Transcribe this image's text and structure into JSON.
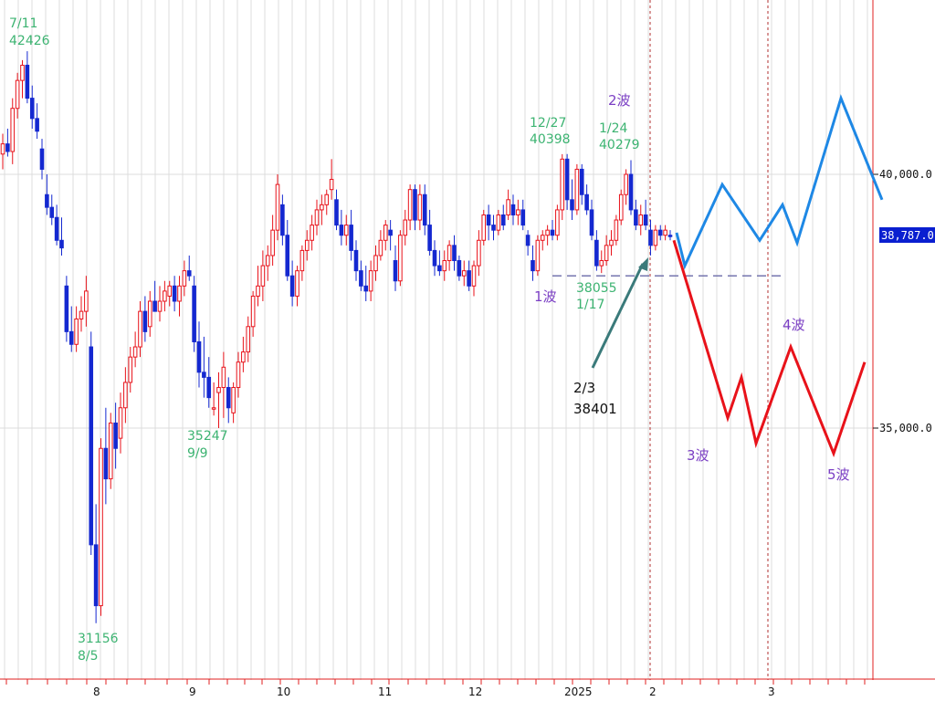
{
  "chart_data": {
    "type": "candlestick",
    "y_axis": {
      "ticks": [
        {
          "value": 35000,
          "label": "35,000.0"
        },
        {
          "value": 40000,
          "label": "40,000.0"
        }
      ],
      "range": [
        30600,
        43400
      ]
    },
    "x_axis": {
      "ticks": [
        "8",
        "9",
        "10",
        "11",
        "12",
        "2025",
        "2",
        "3"
      ]
    },
    "current_price": {
      "value": 38787,
      "label": "38,787.0"
    },
    "colors": {
      "up": "#e8121a",
      "down": "#1428d0",
      "forecast_up": "#1e88e5",
      "forecast_down": "#e8121a",
      "support": "#6a6aa8",
      "arrow": "#3a7a7a"
    },
    "candles": [
      [
        40400,
        40800,
        40100,
        40600
      ],
      [
        40600,
        40900,
        40350,
        40450
      ],
      [
        40450,
        41500,
        40200,
        41300
      ],
      [
        41300,
        42000,
        41100,
        41850
      ],
      [
        41850,
        42250,
        41500,
        42150
      ],
      [
        42150,
        42426,
        41400,
        41500
      ],
      [
        41500,
        41750,
        40900,
        41100
      ],
      [
        41100,
        41400,
        40700,
        40850
      ],
      [
        40500,
        40700,
        39900,
        40100
      ],
      [
        39600,
        40000,
        39200,
        39350
      ],
      [
        39350,
        39600,
        39000,
        39150
      ],
      [
        39150,
        39400,
        38600,
        38700
      ],
      [
        38700,
        39150,
        38400,
        38550
      ],
      [
        37800,
        38000,
        36700,
        36900
      ],
      [
        36900,
        37400,
        36500,
        36650
      ],
      [
        36650,
        37400,
        36500,
        37150
      ],
      [
        37150,
        37600,
        36900,
        37300
      ],
      [
        37300,
        38000,
        37000,
        37700
      ],
      [
        36600,
        36900,
        32500,
        32700
      ],
      [
        32700,
        33500,
        31156,
        31500
      ],
      [
        31500,
        34800,
        31300,
        34600
      ],
      [
        34600,
        35400,
        33500,
        34000
      ],
      [
        34000,
        35300,
        33800,
        35100
      ],
      [
        35100,
        35500,
        34200,
        34600
      ],
      [
        34800,
        35700,
        34500,
        35400
      ],
      [
        35400,
        36200,
        35100,
        35900
      ],
      [
        35900,
        36600,
        35700,
        36400
      ],
      [
        36400,
        36900,
        36200,
        36600
      ],
      [
        36600,
        37500,
        36400,
        37300
      ],
      [
        37300,
        37600,
        36700,
        36900
      ],
      [
        37000,
        37700,
        36800,
        37500
      ],
      [
        37500,
        37900,
        37300,
        37300
      ],
      [
        37300,
        37800,
        37100,
        37500
      ],
      [
        37500,
        37900,
        37300,
        37700
      ],
      [
        37600,
        37900,
        37400,
        37800
      ],
      [
        37800,
        38000,
        37300,
        37500
      ],
      [
        37500,
        38000,
        37200,
        37800
      ],
      [
        37800,
        38300,
        37600,
        38100
      ],
      [
        38100,
        38400,
        37900,
        38000
      ],
      [
        37800,
        38000,
        36500,
        36700
      ],
      [
        36700,
        37100,
        35800,
        36100
      ],
      [
        36100,
        36800,
        35600,
        36000
      ],
      [
        36000,
        36400,
        35400,
        35600
      ],
      [
        35400,
        35900,
        35247,
        35400
      ],
      [
        35700,
        36100,
        35000,
        35800
      ],
      [
        35800,
        36500,
        35200,
        36200
      ],
      [
        35800,
        36000,
        35100,
        35400
      ],
      [
        35300,
        35900,
        35100,
        35800
      ],
      [
        35800,
        36500,
        35600,
        36300
      ],
      [
        36300,
        36800,
        36100,
        36500
      ],
      [
        36500,
        37200,
        36300,
        37000
      ],
      [
        37000,
        37700,
        36800,
        37600
      ],
      [
        37600,
        38200,
        37400,
        37800
      ],
      [
        37800,
        38500,
        37500,
        38200
      ],
      [
        38200,
        38600,
        37900,
        38400
      ],
      [
        38400,
        39200,
        38200,
        38900
      ],
      [
        38900,
        40000,
        38700,
        39800
      ],
      [
        39400,
        39600,
        38600,
        38800
      ],
      [
        38800,
        39100,
        37900,
        38000
      ],
      [
        38000,
        38300,
        37400,
        37600
      ],
      [
        37600,
        38200,
        37400,
        38100
      ],
      [
        38100,
        38600,
        37900,
        38500
      ],
      [
        38500,
        38900,
        38300,
        38700
      ],
      [
        38700,
        39200,
        38500,
        39000
      ],
      [
        39000,
        39500,
        38800,
        39300
      ],
      [
        39300,
        39600,
        39000,
        39400
      ],
      [
        39400,
        39700,
        39200,
        39600
      ],
      [
        39700,
        40300,
        39500,
        39900
      ],
      [
        39500,
        39700,
        38900,
        39000
      ],
      [
        39000,
        39300,
        38600,
        38800
      ],
      [
        38800,
        39200,
        38600,
        39000
      ],
      [
        39000,
        39300,
        38300,
        38500
      ],
      [
        38500,
        38700,
        37900,
        38100
      ],
      [
        38100,
        38300,
        37700,
        37800
      ],
      [
        37800,
        38200,
        37500,
        37700
      ],
      [
        37700,
        38300,
        37500,
        38100
      ],
      [
        38100,
        38600,
        37900,
        38400
      ],
      [
        38400,
        38900,
        38300,
        38700
      ],
      [
        38700,
        39100,
        38500,
        39000
      ],
      [
        38900,
        39100,
        38500,
        38800
      ],
      [
        38300,
        38600,
        37700,
        37900
      ],
      [
        37900,
        38900,
        37800,
        38800
      ],
      [
        38800,
        39300,
        38600,
        39100
      ],
      [
        39100,
        39800,
        38900,
        39700
      ],
      [
        39700,
        39800,
        38900,
        39100
      ],
      [
        39100,
        39800,
        38900,
        39600
      ],
      [
        39600,
        39800,
        38800,
        39000
      ],
      [
        39000,
        39300,
        38400,
        38500
      ],
      [
        38500,
        38700,
        38000,
        38200
      ],
      [
        38200,
        38500,
        38000,
        38100
      ],
      [
        38100,
        38500,
        37900,
        38300
      ],
      [
        38300,
        38700,
        38100,
        38600
      ],
      [
        38600,
        38800,
        38100,
        38300
      ],
      [
        38300,
        38400,
        37900,
        38000
      ],
      [
        38000,
        38300,
        37800,
        38100
      ],
      [
        38100,
        38300,
        37700,
        37800
      ],
      [
        37800,
        38300,
        37600,
        38200
      ],
      [
        38200,
        38900,
        38000,
        38700
      ],
      [
        38700,
        39300,
        38600,
        39200
      ],
      [
        39200,
        39400,
        38700,
        39000
      ],
      [
        39000,
        39200,
        38700,
        38900
      ],
      [
        38900,
        39300,
        38800,
        39200
      ],
      [
        39200,
        39400,
        38900,
        39000
      ],
      [
        39200,
        39700,
        39100,
        39500
      ],
      [
        39400,
        39600,
        39000,
        39200
      ],
      [
        39200,
        39500,
        39000,
        39300
      ],
      [
        39300,
        39500,
        38900,
        39000
      ],
      [
        38800,
        38900,
        38400,
        38600
      ],
      [
        38300,
        38600,
        37900,
        38100
      ],
      [
        38100,
        38800,
        38000,
        38700
      ],
      [
        38700,
        38900,
        38500,
        38800
      ],
      [
        38800,
        39000,
        38600,
        38900
      ],
      [
        38900,
        39100,
        38700,
        38800
      ],
      [
        38800,
        39400,
        38700,
        39300
      ],
      [
        39300,
        40398,
        39100,
        40300
      ],
      [
        40300,
        40400,
        39300,
        39500
      ],
      [
        39500,
        39900,
        39100,
        39300
      ],
      [
        39300,
        40200,
        39200,
        40100
      ],
      [
        40100,
        40200,
        39400,
        39600
      ],
      [
        39600,
        39800,
        39200,
        39300
      ],
      [
        39300,
        39500,
        38700,
        38800
      ],
      [
        38700,
        38900,
        38100,
        38200
      ],
      [
        38200,
        38500,
        38055,
        38300
      ],
      [
        38300,
        38800,
        38200,
        38600
      ],
      [
        38600,
        38900,
        38400,
        38700
      ],
      [
        38700,
        39200,
        38600,
        39100
      ],
      [
        39100,
        39700,
        39000,
        39600
      ],
      [
        39600,
        40100,
        39400,
        40000
      ],
      [
        40000,
        40279,
        39200,
        39300
      ],
      [
        39300,
        39500,
        38900,
        39000
      ],
      [
        39000,
        39400,
        38800,
        39200
      ],
      [
        39200,
        39500,
        38900,
        39000
      ],
      [
        38900,
        39100,
        38401,
        38600
      ],
      [
        38600,
        39000,
        38500,
        38900
      ],
      [
        38900,
        39000,
        38700,
        38800
      ],
      [
        38800,
        39000,
        38700,
        38900
      ],
      [
        38800,
        38900,
        38700,
        38787
      ]
    ],
    "forecast_blue": [
      [
        38850,
        741
      ],
      [
        38200,
        750
      ],
      [
        39800,
        791
      ],
      [
        38700,
        832
      ],
      [
        39400,
        857
      ],
      [
        38650,
        873
      ],
      [
        41500,
        921
      ],
      [
        39500,
        966
      ]
    ],
    "forecast_red": [
      [
        38700,
        738
      ],
      [
        35200,
        797
      ],
      [
        36000,
        812
      ],
      [
        34700,
        828
      ],
      [
        36600,
        866
      ],
      [
        34500,
        913
      ],
      [
        36300,
        947
      ]
    ],
    "support_level": 38000,
    "annotations": [
      {
        "text": "7/11",
        "color": "green"
      },
      {
        "text": "42426",
        "color": "green"
      },
      {
        "text": "31156",
        "color": "green"
      },
      {
        "text": "8/5",
        "color": "green"
      },
      {
        "text": "35247",
        "color": "green"
      },
      {
        "text": "9/9",
        "color": "green"
      },
      {
        "text": "12/27",
        "color": "green"
      },
      {
        "text": "40398",
        "color": "green"
      },
      {
        "text": "1/24",
        "color": "green"
      },
      {
        "text": "40279",
        "color": "green"
      },
      {
        "text": "38055",
        "color": "green"
      },
      {
        "text": "1/17",
        "color": "green"
      },
      {
        "text": "2/3",
        "color": "black"
      },
      {
        "text": "38401",
        "color": "black"
      },
      {
        "text": "1波",
        "color": "purple"
      },
      {
        "text": "2波",
        "color": "purple"
      },
      {
        "text": "3波",
        "color": "purple"
      },
      {
        "text": "4波",
        "color": "purple"
      },
      {
        "text": "5波",
        "color": "purple"
      }
    ]
  }
}
